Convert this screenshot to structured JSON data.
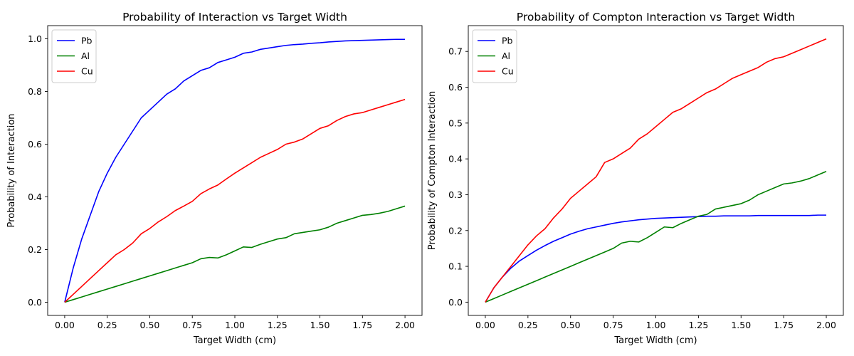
{
  "chart_data": [
    {
      "type": "line",
      "title": "Probability of Interaction vs Target Width",
      "xlabel": "Target Width (cm)",
      "ylabel": "Probability of Interaction",
      "xlim": [
        -0.1,
        2.1
      ],
      "ylim": [
        -0.05,
        1.05
      ],
      "xticks": [
        0.0,
        0.25,
        0.5,
        0.75,
        1.0,
        1.25,
        1.5,
        1.75,
        2.0
      ],
      "xtick_labels": [
        "0.00",
        "0.25",
        "0.50",
        "0.75",
        "1.00",
        "1.25",
        "1.50",
        "1.75",
        "2.00"
      ],
      "yticks": [
        0.0,
        0.2,
        0.4,
        0.6,
        0.8,
        1.0
      ],
      "ytick_labels": [
        "0.0",
        "0.2",
        "0.4",
        "0.6",
        "0.8",
        "1.0"
      ],
      "grid": false,
      "legend": "top-left",
      "x": [
        0.0,
        0.05,
        0.1,
        0.15,
        0.2,
        0.25,
        0.3,
        0.35,
        0.4,
        0.45,
        0.5,
        0.55,
        0.6,
        0.65,
        0.7,
        0.75,
        0.8,
        0.85,
        0.9,
        0.95,
        1.0,
        1.05,
        1.1,
        1.15,
        1.2,
        1.25,
        1.3,
        1.35,
        1.4,
        1.45,
        1.5,
        1.55,
        1.6,
        1.65,
        1.7,
        1.75,
        1.8,
        1.85,
        1.9,
        1.95,
        2.0
      ],
      "series": [
        {
          "name": "Pb",
          "color": "#0000ff",
          "values": [
            0.0,
            0.13,
            0.24,
            0.33,
            0.42,
            0.49,
            0.55,
            0.6,
            0.65,
            0.7,
            0.73,
            0.76,
            0.79,
            0.81,
            0.84,
            0.86,
            0.88,
            0.89,
            0.91,
            0.92,
            0.93,
            0.945,
            0.95,
            0.96,
            0.965,
            0.97,
            0.975,
            0.978,
            0.98,
            0.983,
            0.985,
            0.988,
            0.99,
            0.992,
            0.993,
            0.994,
            0.995,
            0.996,
            0.997,
            0.998,
            0.998
          ]
        },
        {
          "name": "Al",
          "color": "#008000",
          "values": [
            0.0,
            0.01,
            0.02,
            0.03,
            0.04,
            0.05,
            0.06,
            0.07,
            0.08,
            0.09,
            0.1,
            0.11,
            0.12,
            0.13,
            0.14,
            0.15,
            0.165,
            0.17,
            0.168,
            0.18,
            0.195,
            0.21,
            0.208,
            0.22,
            0.23,
            0.24,
            0.245,
            0.26,
            0.265,
            0.27,
            0.275,
            0.285,
            0.3,
            0.31,
            0.32,
            0.33,
            0.333,
            0.338,
            0.345,
            0.355,
            0.365
          ]
        },
        {
          "name": "Cu",
          "color": "#ff0000",
          "values": [
            0.0,
            0.03,
            0.06,
            0.09,
            0.12,
            0.15,
            0.18,
            0.2,
            0.225,
            0.26,
            0.28,
            0.305,
            0.325,
            0.348,
            0.365,
            0.383,
            0.412,
            0.43,
            0.445,
            0.468,
            0.49,
            0.51,
            0.53,
            0.55,
            0.565,
            0.58,
            0.6,
            0.608,
            0.62,
            0.64,
            0.66,
            0.67,
            0.69,
            0.705,
            0.715,
            0.72,
            0.73,
            0.74,
            0.75,
            0.76,
            0.77
          ]
        }
      ]
    },
    {
      "type": "line",
      "title": "Probability of Compton Interaction vs Target Width",
      "xlabel": "Target Width (cm)",
      "ylabel": "Probability of Compton Interaction",
      "xlim": [
        -0.1,
        2.1
      ],
      "ylim": [
        -0.037,
        0.772
      ],
      "xticks": [
        0.0,
        0.25,
        0.5,
        0.75,
        1.0,
        1.25,
        1.5,
        1.75,
        2.0
      ],
      "xtick_labels": [
        "0.00",
        "0.25",
        "0.50",
        "0.75",
        "1.00",
        "1.25",
        "1.50",
        "1.75",
        "2.00"
      ],
      "yticks": [
        0.0,
        0.1,
        0.2,
        0.3,
        0.4,
        0.5,
        0.6,
        0.7
      ],
      "ytick_labels": [
        "0.0",
        "0.1",
        "0.2",
        "0.3",
        "0.4",
        "0.5",
        "0.6",
        "0.7"
      ],
      "grid": false,
      "legend": "top-left",
      "x": [
        0.0,
        0.05,
        0.1,
        0.15,
        0.2,
        0.25,
        0.3,
        0.35,
        0.4,
        0.45,
        0.5,
        0.55,
        0.6,
        0.65,
        0.7,
        0.75,
        0.8,
        0.85,
        0.9,
        0.95,
        1.0,
        1.05,
        1.1,
        1.15,
        1.2,
        1.25,
        1.3,
        1.35,
        1.4,
        1.45,
        1.5,
        1.55,
        1.6,
        1.65,
        1.7,
        1.75,
        1.8,
        1.85,
        1.9,
        1.95,
        2.0
      ],
      "series": [
        {
          "name": "Pb",
          "color": "#0000ff",
          "values": [
            0.0,
            0.04,
            0.07,
            0.095,
            0.115,
            0.13,
            0.145,
            0.158,
            0.17,
            0.18,
            0.19,
            0.198,
            0.205,
            0.21,
            0.215,
            0.22,
            0.224,
            0.227,
            0.23,
            0.232,
            0.234,
            0.235,
            0.236,
            0.237,
            0.238,
            0.239,
            0.24,
            0.24,
            0.241,
            0.241,
            0.241,
            0.241,
            0.242,
            0.242,
            0.242,
            0.242,
            0.242,
            0.242,
            0.242,
            0.243,
            0.243
          ]
        },
        {
          "name": "Al",
          "color": "#008000",
          "values": [
            0.0,
            0.01,
            0.02,
            0.03,
            0.04,
            0.05,
            0.06,
            0.07,
            0.08,
            0.09,
            0.1,
            0.11,
            0.12,
            0.13,
            0.14,
            0.15,
            0.165,
            0.17,
            0.168,
            0.18,
            0.195,
            0.21,
            0.208,
            0.22,
            0.23,
            0.24,
            0.245,
            0.26,
            0.265,
            0.27,
            0.275,
            0.285,
            0.3,
            0.31,
            0.32,
            0.33,
            0.333,
            0.338,
            0.345,
            0.355,
            0.365
          ]
        },
        {
          "name": "Cu",
          "color": "#ff0000",
          "values": [
            0.0,
            0.04,
            0.07,
            0.1,
            0.13,
            0.16,
            0.185,
            0.205,
            0.235,
            0.26,
            0.29,
            0.31,
            0.33,
            0.35,
            0.39,
            0.4,
            0.415,
            0.43,
            0.455,
            0.47,
            0.49,
            0.51,
            0.53,
            0.54,
            0.555,
            0.57,
            0.585,
            0.595,
            0.61,
            0.625,
            0.635,
            0.645,
            0.655,
            0.67,
            0.68,
            0.685,
            0.695,
            0.705,
            0.715,
            0.725,
            0.735
          ]
        }
      ]
    }
  ]
}
